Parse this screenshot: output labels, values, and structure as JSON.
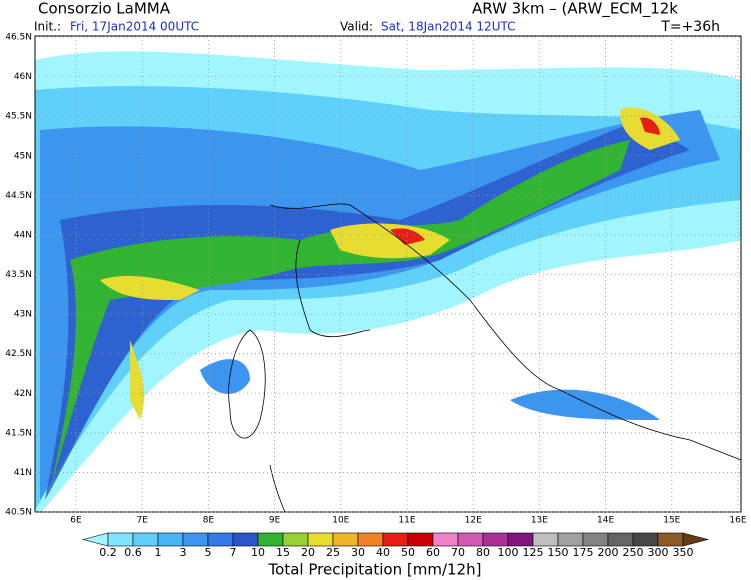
{
  "header": {
    "title": "Consorzio LaMMA",
    "model": "ARW 3km  –  (ARW_ECM_12k",
    "init_label": "Init.:",
    "init_time": "Fri, 17Jan2014 00UTC",
    "valid_label": "Valid:",
    "valid_time": "Sat, 18Jan2014 12UTC",
    "lead": "T=+36h"
  },
  "map": {
    "lat_labels": [
      "46.5N",
      "46N",
      "45.5N",
      "45N",
      "44.5N",
      "44N",
      "43.5N",
      "43N",
      "42.5N",
      "42N",
      "41.5N",
      "41N",
      "40.5N"
    ],
    "lon_labels": [
      "6E",
      "7E",
      "8E",
      "9E",
      "10E",
      "11E",
      "12E",
      "13E",
      "14E",
      "15E",
      "16E"
    ]
  },
  "legend": {
    "title": "Total Precipitation [mm/12h]",
    "labels": [
      0.2,
      0.6,
      1,
      3,
      5,
      7,
      10,
      15,
      20,
      25,
      30,
      40,
      50,
      60,
      70,
      80,
      100,
      125,
      150,
      175,
      200,
      250,
      300,
      350
    ],
    "colors": [
      "#a0f5ff",
      "#80e6ff",
      "#5fd0fa",
      "#46b4f5",
      "#3c96f0",
      "#327ae6",
      "#2a55c8",
      "#32b432",
      "#96d232",
      "#e6dc32",
      "#f0b428",
      "#f08228",
      "#e61e14",
      "#c80000",
      "#f082c8",
      "#d25ab4",
      "#aa3296",
      "#82147d",
      "#bebebe",
      "#a0a0a0",
      "#828282",
      "#646464",
      "#464646",
      "#8c5a28",
      "#643c14"
    ]
  }
}
